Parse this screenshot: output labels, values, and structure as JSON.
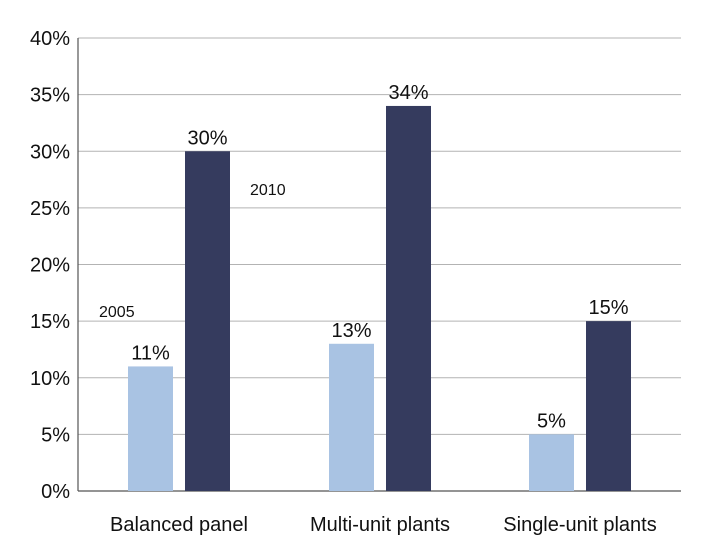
{
  "chart_data": {
    "type": "bar",
    "categories": [
      "Balanced panel",
      "Multi-unit plants",
      "Single-unit plants"
    ],
    "series": [
      {
        "name": "2005",
        "values": [
          11,
          13,
          5
        ],
        "labels": [
          "11%",
          "13%",
          "5%"
        ],
        "color": "#a9c3e3"
      },
      {
        "name": "2010",
        "values": [
          30,
          34,
          15
        ],
        "labels": [
          "30%",
          "34%",
          "15%"
        ],
        "color": "#353b5e"
      }
    ],
    "ylim": [
      0,
      40
    ],
    "yticks": [
      0,
      5,
      10,
      15,
      20,
      25,
      30,
      35,
      40
    ],
    "ytick_labels": [
      "0%",
      "5%",
      "10%",
      "15%",
      "20%",
      "25%",
      "30%",
      "35%",
      "40%"
    ],
    "title": "",
    "xlabel": "",
    "ylabel": "",
    "grid": true,
    "gridline_color": "#b3b3b3",
    "axis_color": "#555555"
  }
}
